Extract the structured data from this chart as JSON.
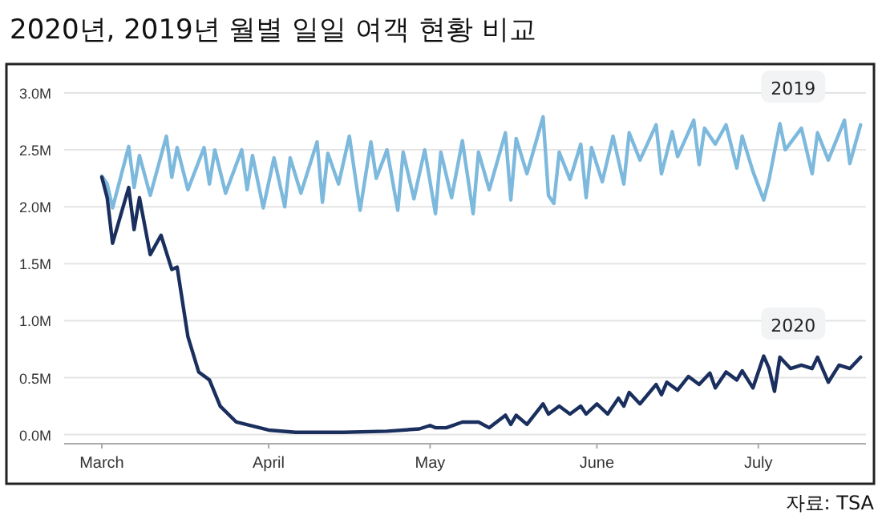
{
  "chart_data": {
    "type": "line",
    "title": "2020년, 2019년 월별 일일 여객 현황 비교",
    "annotations": [
      "자료: TSA"
    ],
    "xlim": [
      "2020-02-23",
      "2020-07-21"
    ],
    "xticks": [
      {
        "value": "2020-03-01",
        "label": "March"
      },
      {
        "value": "2020-04-01",
        "label": "April"
      },
      {
        "value": "2020-05-01",
        "label": "May"
      },
      {
        "value": "2020-06-01",
        "label": "June"
      },
      {
        "value": "2020-07-01",
        "label": "July"
      }
    ],
    "ylim": [
      -0.08,
      3.0
    ],
    "yticks": [
      {
        "value": 0,
        "label": "0.0M"
      },
      {
        "value": 0.5,
        "label": "0.5M"
      },
      {
        "value": 1,
        "label": "1.0M"
      },
      {
        "value": 1.5,
        "label": "1.5M"
      },
      {
        "value": 2,
        "label": "2.0M"
      },
      {
        "value": 2.5,
        "label": "2.5M"
      },
      {
        "value": 3,
        "label": "3.0M"
      }
    ],
    "grid": "y",
    "marker": "none",
    "line_style": "solid",
    "series": [
      {
        "name": "2019",
        "color": "#7db9dd",
        "x": [
          "2020-03-01",
          "2020-03-02",
          "2020-03-03",
          "2020-03-06",
          "2020-03-07",
          "2020-03-08",
          "2020-03-10",
          "2020-03-13",
          "2020-03-14",
          "2020-03-15",
          "2020-03-17",
          "2020-03-20",
          "2020-03-21",
          "2020-03-22",
          "2020-03-24",
          "2020-03-27",
          "2020-03-28",
          "2020-03-29",
          "2020-03-31",
          "2020-04-02",
          "2020-04-04",
          "2020-04-05",
          "2020-04-07",
          "2020-04-10",
          "2020-04-11",
          "2020-04-12",
          "2020-04-14",
          "2020-04-16",
          "2020-04-18",
          "2020-04-20",
          "2020-04-21",
          "2020-04-23",
          "2020-04-25",
          "2020-04-26",
          "2020-04-28",
          "2020-04-30",
          "2020-05-02",
          "2020-05-03",
          "2020-05-05",
          "2020-05-07",
          "2020-05-09",
          "2020-05-10",
          "2020-05-12",
          "2020-05-15",
          "2020-05-16",
          "2020-05-17",
          "2020-05-19",
          "2020-05-22",
          "2020-05-23",
          "2020-05-24",
          "2020-05-25",
          "2020-05-27",
          "2020-05-29",
          "2020-05-30",
          "2020-05-31",
          "2020-06-02",
          "2020-06-04",
          "2020-06-06",
          "2020-06-07",
          "2020-06-09",
          "2020-06-12",
          "2020-06-13",
          "2020-06-15",
          "2020-06-16",
          "2020-06-19",
          "2020-06-20",
          "2020-06-21",
          "2020-06-23",
          "2020-06-25",
          "2020-06-27",
          "2020-06-28",
          "2020-06-30",
          "2020-07-02",
          "2020-07-03",
          "2020-07-05",
          "2020-07-06",
          "2020-07-09",
          "2020-07-11",
          "2020-07-12",
          "2020-07-14",
          "2020-07-17",
          "2020-07-18",
          "2020-07-20"
        ],
        "values": [
          2.27,
          2.2,
          1.99,
          2.53,
          2.17,
          2.45,
          2.1,
          2.62,
          2.26,
          2.52,
          2.15,
          2.52,
          2.2,
          2.5,
          2.12,
          2.5,
          2.15,
          2.45,
          1.99,
          2.43,
          2.0,
          2.43,
          2.12,
          2.57,
          2.04,
          2.47,
          2.2,
          2.62,
          1.97,
          2.57,
          2.25,
          2.5,
          1.97,
          2.48,
          2.07,
          2.5,
          1.94,
          2.48,
          2.08,
          2.58,
          1.94,
          2.48,
          2.15,
          2.65,
          2.06,
          2.6,
          2.29,
          2.79,
          2.1,
          2.03,
          2.48,
          2.24,
          2.55,
          2.08,
          2.52,
          2.22,
          2.62,
          2.2,
          2.65,
          2.41,
          2.72,
          2.29,
          2.66,
          2.44,
          2.76,
          2.37,
          2.69,
          2.55,
          2.72,
          2.34,
          2.62,
          2.31,
          2.06,
          2.24,
          2.73,
          2.5,
          2.69,
          2.29,
          2.65,
          2.41,
          2.76,
          2.38,
          2.72
        ]
      },
      {
        "name": "2020",
        "color": "#1a2f5e",
        "x": [
          "2020-03-01",
          "2020-03-02",
          "2020-03-03",
          "2020-03-06",
          "2020-03-07",
          "2020-03-08",
          "2020-03-10",
          "2020-03-12",
          "2020-03-14",
          "2020-03-15",
          "2020-03-17",
          "2020-03-19",
          "2020-03-21",
          "2020-03-23",
          "2020-03-26",
          "2020-04-01",
          "2020-04-06",
          "2020-04-15",
          "2020-04-23",
          "2020-04-29",
          "2020-05-01",
          "2020-05-02",
          "2020-05-04",
          "2020-05-07",
          "2020-05-10",
          "2020-05-12",
          "2020-05-15",
          "2020-05-16",
          "2020-05-17",
          "2020-05-19",
          "2020-05-22",
          "2020-05-23",
          "2020-05-25",
          "2020-05-27",
          "2020-05-29",
          "2020-05-30",
          "2020-06-01",
          "2020-06-03",
          "2020-06-05",
          "2020-06-06",
          "2020-06-07",
          "2020-06-09",
          "2020-06-12",
          "2020-06-13",
          "2020-06-14",
          "2020-06-16",
          "2020-06-18",
          "2020-06-20",
          "2020-06-22",
          "2020-06-23",
          "2020-06-25",
          "2020-06-27",
          "2020-06-28",
          "2020-06-30",
          "2020-07-02",
          "2020-07-03",
          "2020-07-04",
          "2020-07-05",
          "2020-07-07",
          "2020-07-09",
          "2020-07-11",
          "2020-07-12",
          "2020-07-14",
          "2020-07-16",
          "2020-07-18",
          "2020-07-20"
        ],
        "values": [
          2.26,
          2.08,
          1.68,
          2.17,
          1.8,
          2.08,
          1.58,
          1.75,
          1.45,
          1.47,
          0.86,
          0.55,
          0.48,
          0.25,
          0.11,
          0.04,
          0.02,
          0.02,
          0.03,
          0.05,
          0.08,
          0.06,
          0.06,
          0.11,
          0.11,
          0.06,
          0.17,
          0.09,
          0.17,
          0.09,
          0.27,
          0.18,
          0.25,
          0.18,
          0.25,
          0.18,
          0.27,
          0.18,
          0.32,
          0.25,
          0.37,
          0.27,
          0.44,
          0.35,
          0.46,
          0.39,
          0.51,
          0.44,
          0.54,
          0.41,
          0.55,
          0.48,
          0.56,
          0.41,
          0.69,
          0.58,
          0.38,
          0.68,
          0.58,
          0.61,
          0.58,
          0.68,
          0.46,
          0.61,
          0.58,
          0.68
        ]
      }
    ]
  }
}
